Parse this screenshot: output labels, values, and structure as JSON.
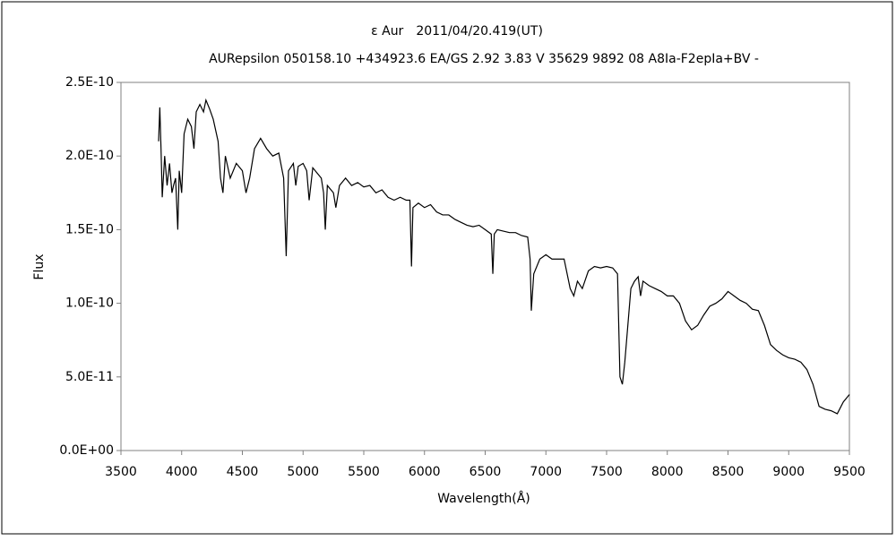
{
  "chart_data": {
    "type": "line",
    "title": "ε Aur　2011/04/20.419(UT)",
    "subtitle": "AURepsilon 050158.10 +434923.6 EA/GS 2.92 3.83 V 35629 9892 08 A8Ⅰa-F2epⅠa+BV -",
    "xlabel": "Wavelength(Å)",
    "ylabel": "Flux",
    "xlim": [
      3500,
      9500
    ],
    "xticks": [
      3500,
      4000,
      4500,
      5000,
      5500,
      6000,
      6500,
      7000,
      7500,
      8000,
      8500,
      9000,
      9500
    ],
    "ylim": [
      0,
      2.5e-10
    ],
    "yticks": [
      {
        "value": 0,
        "label": "0.0E+00"
      },
      {
        "value": 5e-11,
        "label": "5.0E-11"
      },
      {
        "value": 1e-10,
        "label": "1.0E-10"
      },
      {
        "value": 1.5e-10,
        "label": "1.5E-10"
      },
      {
        "value": 2e-10,
        "label": "2.0E-10"
      },
      {
        "value": 2.5e-10,
        "label": "2.5E-10"
      }
    ],
    "grid": false,
    "series": [
      {
        "color": "#000000",
        "x": [
          3810,
          3820,
          3830,
          3840,
          3860,
          3880,
          3900,
          3920,
          3933,
          3950,
          3968,
          3980,
          4000,
          4020,
          4050,
          4080,
          4101,
          4120,
          4150,
          4180,
          4200,
          4230,
          4260,
          4300,
          4320,
          4340,
          4360,
          4400,
          4450,
          4500,
          4530,
          4560,
          4600,
          4650,
          4700,
          4750,
          4800,
          4840,
          4861,
          4880,
          4920,
          4940,
          4960,
          5000,
          5030,
          5050,
          5080,
          5100,
          5150,
          5169,
          5183,
          5200,
          5250,
          5270,
          5300,
          5350,
          5400,
          5450,
          5500,
          5550,
          5600,
          5650,
          5700,
          5750,
          5800,
          5850,
          5880,
          5893,
          5905,
          5950,
          6000,
          6050,
          6100,
          6150,
          6200,
          6250,
          6300,
          6350,
          6400,
          6450,
          6500,
          6550,
          6563,
          6575,
          6600,
          6650,
          6700,
          6750,
          6800,
          6850,
          6870,
          6880,
          6900,
          6950,
          7000,
          7050,
          7100,
          7150,
          7200,
          7230,
          7260,
          7300,
          7350,
          7400,
          7450,
          7500,
          7550,
          7590,
          7610,
          7630,
          7650,
          7680,
          7700,
          7730,
          7760,
          7780,
          7800,
          7850,
          7900,
          7950,
          8000,
          8050,
          8100,
          8150,
          8200,
          8250,
          8300,
          8350,
          8400,
          8450,
          8500,
          8550,
          8600,
          8650,
          8700,
          8750,
          8800,
          8850,
          8900,
          8950,
          9000,
          9050,
          9100,
          9150,
          9200,
          9250,
          9300,
          9350,
          9400,
          9450,
          9500
        ],
        "values": [
          2.1e-10,
          2.33e-10,
          2.05e-10,
          1.72e-10,
          2e-10,
          1.8e-10,
          1.95e-10,
          1.75e-10,
          1.8e-10,
          1.85e-10,
          1.5e-10,
          1.9e-10,
          1.75e-10,
          2.15e-10,
          2.25e-10,
          2.2e-10,
          2.05e-10,
          2.3e-10,
          2.35e-10,
          2.3e-10,
          2.38e-10,
          2.32e-10,
          2.25e-10,
          2.1e-10,
          1.85e-10,
          1.75e-10,
          2e-10,
          1.85e-10,
          1.95e-10,
          1.9e-10,
          1.75e-10,
          1.85e-10,
          2.05e-10,
          2.12e-10,
          2.05e-10,
          2e-10,
          2.02e-10,
          1.85e-10,
          1.32e-10,
          1.9e-10,
          1.95e-10,
          1.8e-10,
          1.93e-10,
          1.95e-10,
          1.9e-10,
          1.7e-10,
          1.92e-10,
          1.9e-10,
          1.85e-10,
          1.75e-10,
          1.5e-10,
          1.8e-10,
          1.75e-10,
          1.65e-10,
          1.8e-10,
          1.85e-10,
          1.8e-10,
          1.82e-10,
          1.79e-10,
          1.8e-10,
          1.75e-10,
          1.77e-10,
          1.72e-10,
          1.7e-10,
          1.72e-10,
          1.7e-10,
          1.7e-10,
          1.25e-10,
          1.65e-10,
          1.68e-10,
          1.65e-10,
          1.67e-10,
          1.62e-10,
          1.6e-10,
          1.6e-10,
          1.57e-10,
          1.55e-10,
          1.53e-10,
          1.52e-10,
          1.53e-10,
          1.5e-10,
          1.47e-10,
          1.2e-10,
          1.47e-10,
          1.5e-10,
          1.49e-10,
          1.48e-10,
          1.48e-10,
          1.46e-10,
          1.45e-10,
          1.3e-10,
          9.5e-11,
          1.2e-10,
          1.3e-10,
          1.33e-10,
          1.3e-10,
          1.3e-10,
          1.3e-10,
          1.1e-10,
          1.05e-10,
          1.15e-10,
          1.1e-10,
          1.22e-10,
          1.25e-10,
          1.24e-10,
          1.25e-10,
          1.24e-10,
          1.2e-10,
          5e-11,
          4.5e-11,
          6e-11,
          9e-11,
          1.1e-10,
          1.15e-10,
          1.18e-10,
          1.05e-10,
          1.15e-10,
          1.12e-10,
          1.1e-10,
          1.08e-10,
          1.05e-10,
          1.05e-10,
          1e-10,
          8.8e-11,
          8.2e-11,
          8.5e-11,
          9.2e-11,
          9.8e-11,
          1e-10,
          1.03e-10,
          1.08e-10,
          1.05e-10,
          1.02e-10,
          1e-10,
          9.6e-11,
          9.5e-11,
          8.5e-11,
          7.2e-11,
          6.8e-11,
          6.5e-11,
          6.3e-11,
          6.2e-11,
          6e-11,
          5.5e-11,
          4.5e-11,
          3e-11,
          2.8e-11,
          2.7e-11,
          2.5e-11,
          3.3e-11,
          3.8e-11
        ]
      }
    ]
  }
}
